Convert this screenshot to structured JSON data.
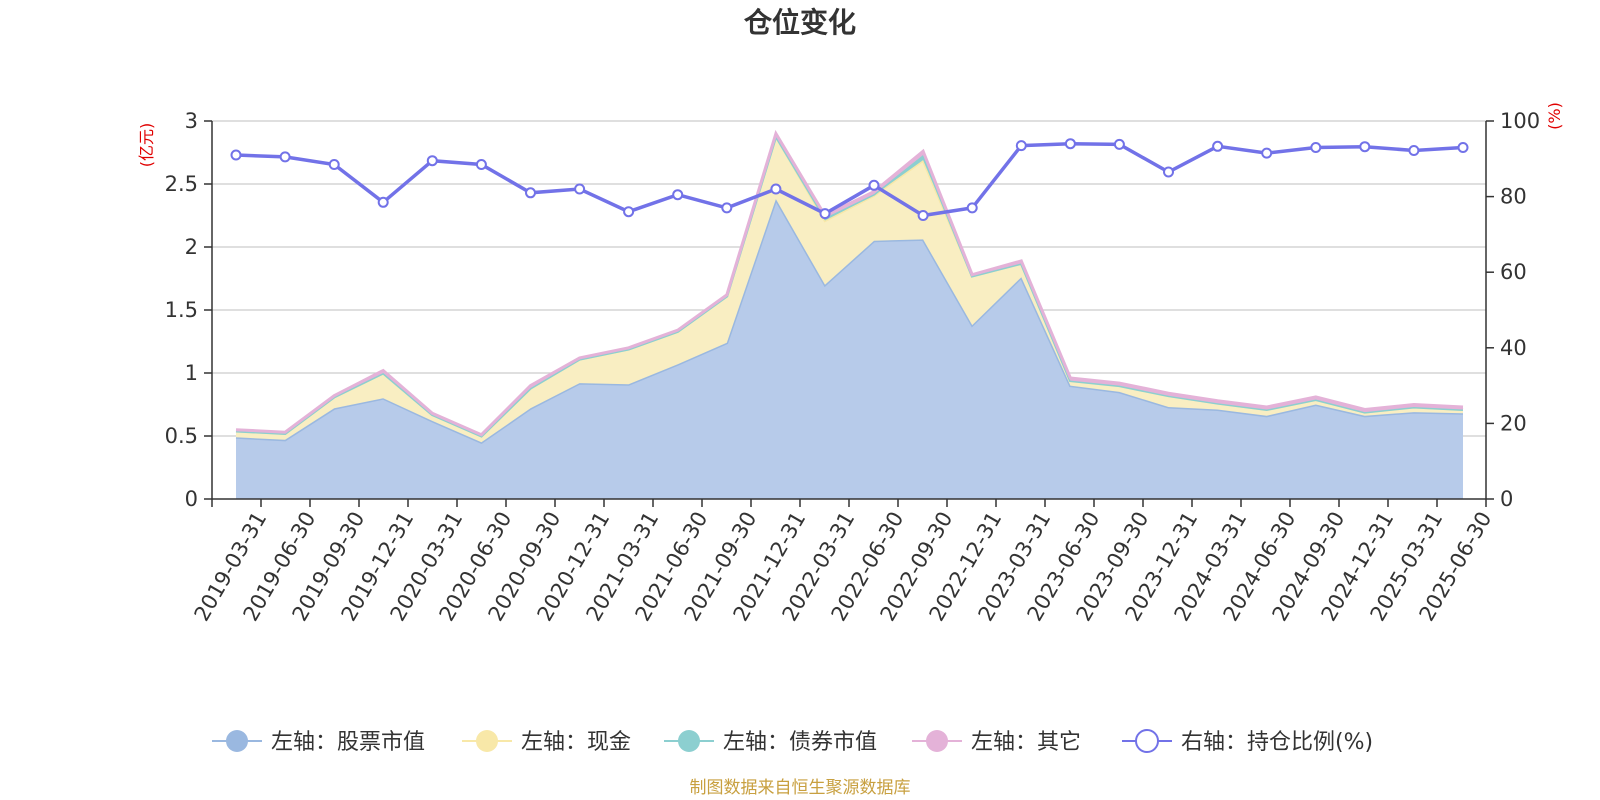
{
  "chart_data": {
    "type": "area",
    "title": "仓位变化",
    "y_left_unit": "(亿元)",
    "y_right_unit": "(%)",
    "categories": [
      "2019-03-31",
      "2019-06-30",
      "2019-09-30",
      "2019-12-31",
      "2020-03-31",
      "2020-06-30",
      "2020-09-30",
      "2020-12-31",
      "2021-03-31",
      "2021-06-30",
      "2021-09-30",
      "2021-12-31",
      "2022-03-31",
      "2022-06-30",
      "2022-09-30",
      "2022-12-31",
      "2023-03-31",
      "2023-06-30",
      "2023-09-30",
      "2023-12-31",
      "2024-03-31",
      "2024-06-30",
      "2024-09-30",
      "2024-12-31",
      "2025-03-31",
      "2025-06-30"
    ],
    "y_left": {
      "min": 0,
      "max": 3,
      "ticks": [
        "0",
        "0.5",
        "1",
        "1.5",
        "2",
        "2.5",
        "3"
      ],
      "tick_values": [
        0,
        0.5,
        1,
        1.5,
        2,
        2.5,
        3
      ]
    },
    "y_right": {
      "min": 0,
      "max": 100,
      "ticks": [
        "0",
        "20",
        "40",
        "60",
        "80",
        "100"
      ],
      "tick_values": [
        0,
        20,
        40,
        60,
        80,
        100
      ]
    },
    "grid": true,
    "legend_position": "bottom",
    "series": [
      {
        "name": "左轴：股票市值",
        "axis": "left",
        "kind": "stacked-area",
        "color": "#9ab8e0",
        "fill": "#b7cbea",
        "values": [
          0.49,
          0.47,
          0.72,
          0.8,
          0.62,
          0.45,
          0.72,
          0.92,
          0.91,
          1.07,
          1.24,
          2.38,
          1.7,
          2.05,
          2.06,
          1.38,
          1.76,
          0.9,
          0.85,
          0.73,
          0.71,
          0.66,
          0.75,
          0.66,
          0.69,
          0.68
        ]
      },
      {
        "name": "左轴：现金",
        "axis": "left",
        "kind": "stacked-area",
        "color": "#f8e8a8",
        "fill": "#f9eec2",
        "values": [
          0.05,
          0.05,
          0.09,
          0.2,
          0.05,
          0.05,
          0.16,
          0.19,
          0.28,
          0.26,
          0.37,
          0.5,
          0.51,
          0.36,
          0.63,
          0.39,
          0.11,
          0.04,
          0.05,
          0.09,
          0.05,
          0.05,
          0.04,
          0.03,
          0.04,
          0.03
        ]
      },
      {
        "name": "左轴：债券市值",
        "axis": "left",
        "kind": "stacked-area",
        "color": "#8ccfd0",
        "fill": "#8ccfd0",
        "values": [
          0,
          0,
          0,
          0,
          0,
          0,
          0,
          0,
          0,
          0,
          0,
          0,
          0.02,
          0.01,
          0.04,
          0,
          0,
          0,
          0,
          0,
          0,
          0,
          0,
          0,
          0,
          0
        ]
      },
      {
        "name": "左轴：其它",
        "axis": "left",
        "kind": "stacked-area",
        "color": "#e4b2d8",
        "fill": "#e4b2d8",
        "values": [
          0.01,
          0.01,
          0.01,
          0.02,
          0.01,
          0.01,
          0.02,
          0.01,
          0.01,
          0.01,
          0.01,
          0.02,
          0.02,
          0.02,
          0.03,
          0.01,
          0.02,
          0.02,
          0.02,
          0.02,
          0.02,
          0.02,
          0.02,
          0.02,
          0.02,
          0.02
        ]
      },
      {
        "name": "右轴：持仓比例(%)",
        "axis": "right",
        "kind": "line",
        "color": "#7272e8",
        "values": [
          91,
          90.5,
          88.5,
          78.5,
          89.5,
          88.5,
          81,
          82,
          76,
          80.5,
          77,
          82,
          75.5,
          83,
          75,
          77,
          93.5,
          94,
          93.8,
          86.5,
          93.3,
          91.5,
          93,
          93.2,
          92.2,
          93
        ]
      }
    ]
  },
  "source_note": "制图数据来自恒生聚源数据库"
}
